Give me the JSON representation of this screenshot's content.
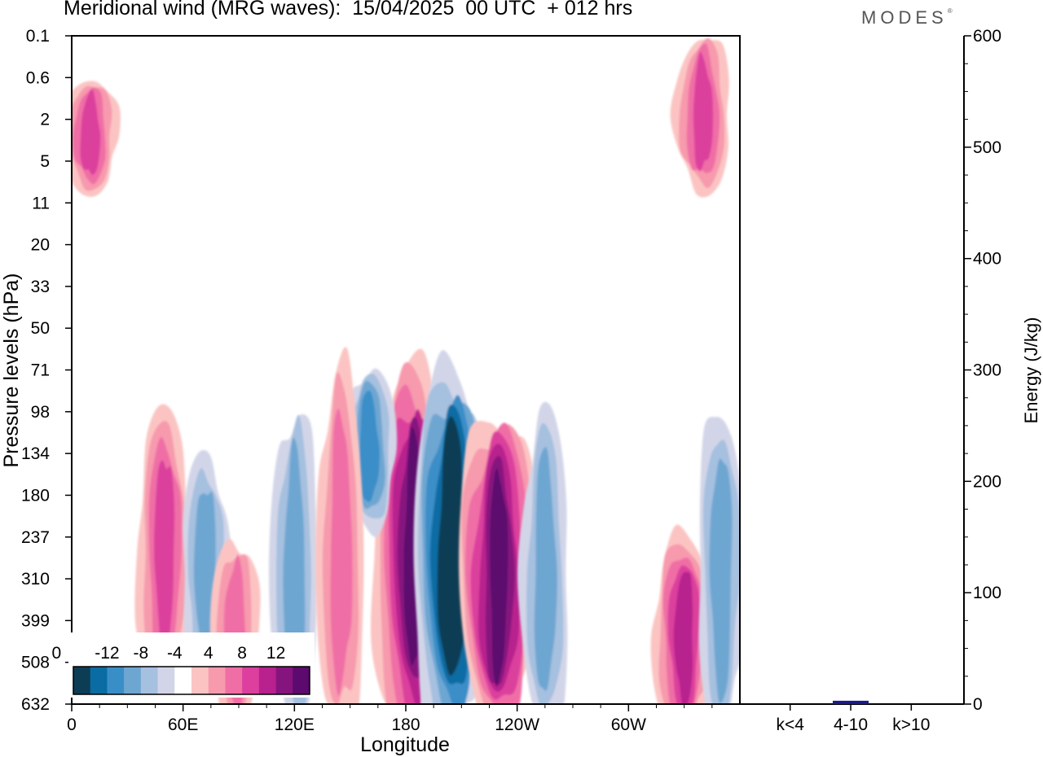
{
  "header": {
    "title": "Meridional wind (MRG waves):  15/04/2025  00 UTC  + 012 hrs",
    "brand": "MODES",
    "brand_mark": "®"
  },
  "chart_data": [
    {
      "type": "heatmap",
      "title": "Meridional wind (MRG waves):  15/04/2025  00 UTC  + 012 hrs",
      "xlabel": "Longitude",
      "ylabel": "Pressure levels (hPa)",
      "x_ticks": [
        "0",
        "60E",
        "120E",
        "180",
        "120W",
        "60W"
      ],
      "x_tick_values_deg_east": [
        0,
        60,
        120,
        180,
        240,
        300
      ],
      "xlim_deg_east": [
        0,
        360
      ],
      "y_ticks": [
        "0.1",
        "0.6",
        "2",
        "5",
        "11",
        "20",
        "33",
        "50",
        "71",
        "98",
        "134",
        "180",
        "237",
        "310",
        "399",
        "508",
        "632"
      ],
      "y_scale": "categorical pressure levels, top = 0.1 hPa, bottom = 632 hPa",
      "colorbar": {
        "placement": "bottom-left",
        "tick_labels": [
          "-12",
          "-8",
          "-4",
          "0",
          "4",
          "8",
          "12"
        ],
        "levels": [
          -14,
          -12,
          -10,
          -8,
          -6,
          -4,
          -2,
          2,
          4,
          6,
          8,
          10,
          12,
          14
        ],
        "colors": [
          "#0c3d55",
          "#0a6ca3",
          "#3a8ec8",
          "#6ea6d2",
          "#a6c0df",
          "#d2d5e8",
          "#ffffff",
          "#fbc4c2",
          "#f79aad",
          "#f06ea6",
          "#dc3f9d",
          "#b8218e",
          "#86147e",
          "#5c0a6e"
        ]
      },
      "features": [
        {
          "lon": 184,
          "level_top": "71",
          "level_bottom": "632",
          "sign": "positive",
          "peak": 14
        },
        {
          "lon": 205,
          "level_top": "71",
          "level_bottom": "632",
          "sign": "negative",
          "peak": -14
        },
        {
          "lon": 230,
          "level_top": "98",
          "level_bottom": "632",
          "sign": "positive",
          "peak": 14
        },
        {
          "lon": 160,
          "level_top": "71",
          "level_bottom": "180",
          "sign": "negative",
          "peak": -8
        },
        {
          "lon": 255,
          "level_top": "98",
          "level_bottom": "632",
          "sign": "negative",
          "peak": -6
        },
        {
          "lon": 50,
          "level_top": "98",
          "level_bottom": "508",
          "sign": "positive",
          "peak": 8
        },
        {
          "lon": 72,
          "level_top": "134",
          "level_bottom": "508",
          "sign": "negative",
          "peak": -6
        },
        {
          "lon": 88,
          "level_top": "237",
          "level_bottom": "632",
          "sign": "positive",
          "peak": 6
        },
        {
          "lon": 120,
          "level_top": "98",
          "level_bottom": "632",
          "sign": "negative",
          "peak": -6
        },
        {
          "lon": 145,
          "level_top": "71",
          "level_bottom": "632",
          "sign": "positive",
          "peak": 6
        },
        {
          "lon": 330,
          "level_top": "237",
          "level_bottom": "632",
          "sign": "positive",
          "peak": 10
        },
        {
          "lon": 350,
          "level_top": "98",
          "level_bottom": "632",
          "sign": "negative",
          "peak": -6
        },
        {
          "lon": 10,
          "level_top": "0.6",
          "level_bottom": "5",
          "sign": "positive",
          "peak": 8
        },
        {
          "lon": 340,
          "level_top": "0.1",
          "level_bottom": "5",
          "sign": "positive",
          "peak": 8
        }
      ]
    },
    {
      "type": "bar",
      "ylabel": "Energy (J/kg)",
      "categories": [
        "k<4",
        "4-10",
        "k>10"
      ],
      "values": [
        0,
        3,
        0
      ],
      "ylim": [
        0,
        600
      ],
      "y_ticks": [
        "0",
        "100",
        "200",
        "300",
        "400",
        "500",
        "600"
      ],
      "y_tick_values": [
        0,
        100,
        200,
        300,
        400,
        500,
        600
      ],
      "bar_color": "#1a1a8c"
    }
  ]
}
